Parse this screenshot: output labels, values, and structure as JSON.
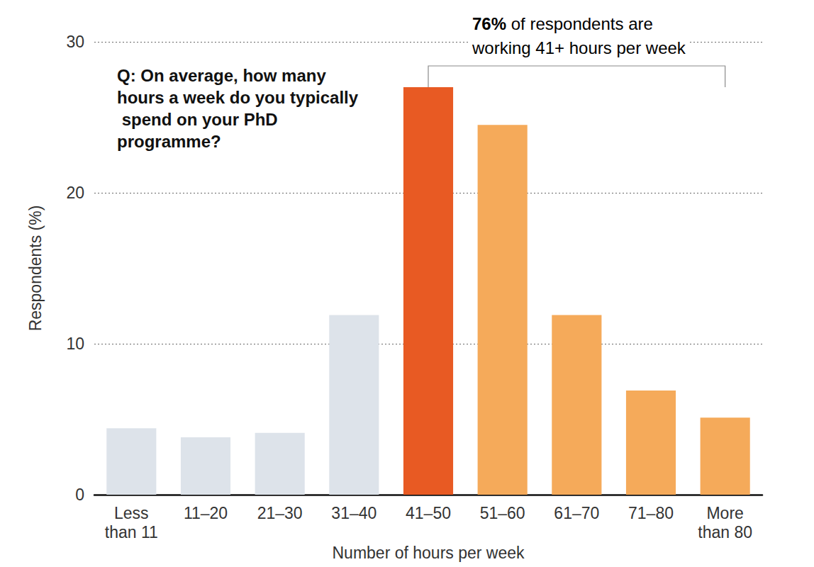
{
  "chart_data": {
    "type": "bar",
    "title": "Q: On average, how many hours a week do you typically spend on your PhD programme?",
    "annotation": [
      "76% of respondents are",
      "working 41+ hours per week"
    ],
    "x_label": "Number of hours per week",
    "y_label": "Respondents (%)",
    "categories": [
      "Less than 11",
      "11–20",
      "21–30",
      "31–40",
      "41–50",
      "51–60",
      "61–70",
      "71–80",
      "More than 80"
    ],
    "values": [
      4.4,
      3.8,
      4.1,
      11.9,
      27.0,
      24.5,
      11.9,
      6.9,
      5.1
    ],
    "colors": [
      "#dde3ea",
      "#dde3ea",
      "#dde3ea",
      "#dde3ea",
      "#e85a23",
      "#f5aa5a",
      "#f5aa5a",
      "#f5aa5a",
      "#f5aa5a"
    ],
    "ylim": [
      0,
      30
    ],
    "yticks": [
      0,
      10,
      20,
      30
    ],
    "grid": true,
    "data_labels": false
  }
}
